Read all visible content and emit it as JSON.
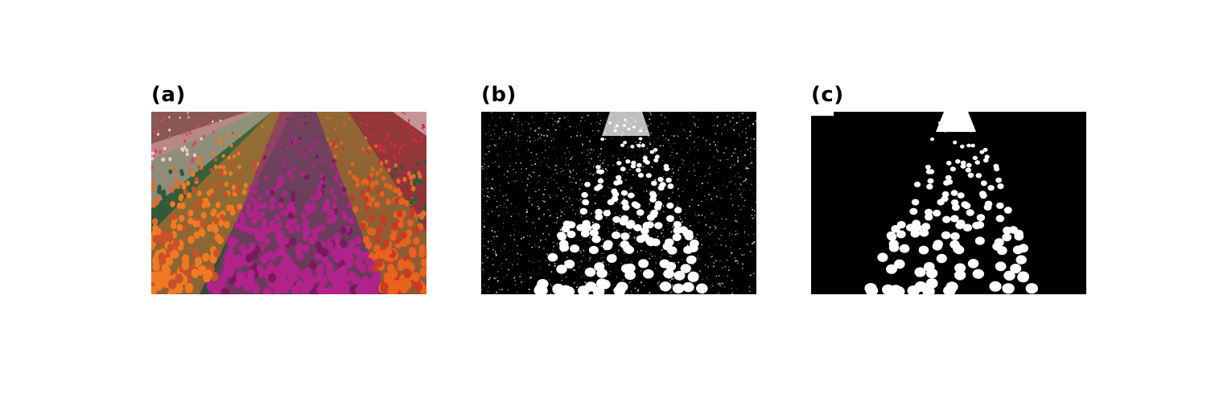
{
  "panels": [
    {
      "label": "(a)",
      "content": "tulip-field-photo"
    },
    {
      "label": "(b)",
      "content": "thresholded-mask"
    },
    {
      "label": "(c)",
      "content": "cleaned-mask"
    }
  ]
}
